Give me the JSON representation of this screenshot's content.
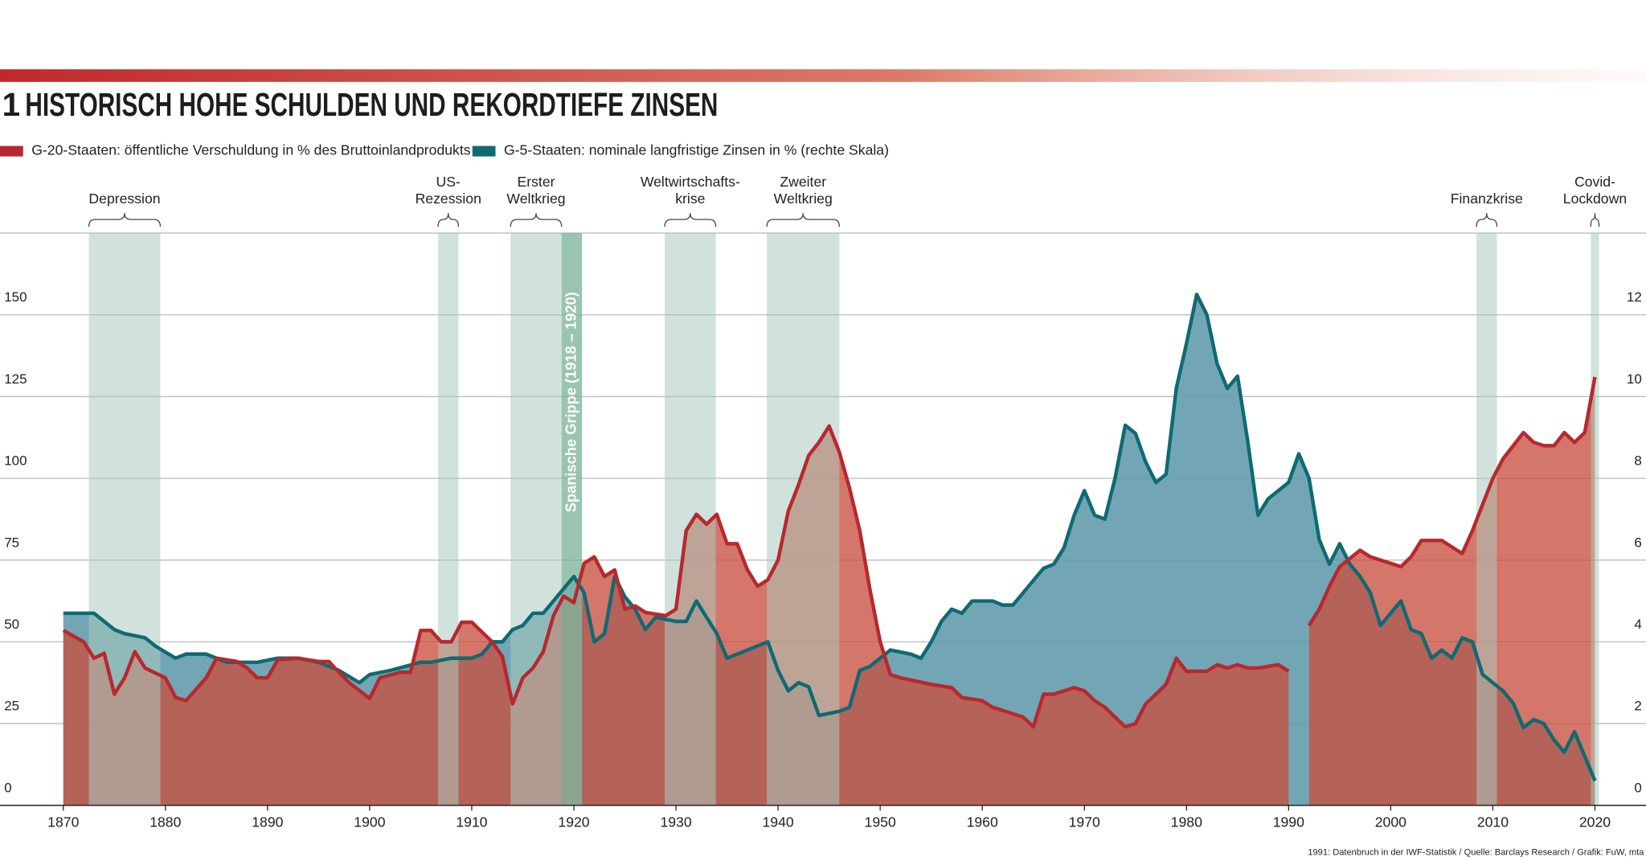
{
  "chart_data": {
    "type": "area",
    "number": "1",
    "title": "HISTORISCH HOHE SCHULDEN UND REKORDTIEFE ZINSEN",
    "source": "1991: Datenbruch in der IWF-Statistik / Quelle: Barclays Research / Grafik: FuW, mta",
    "xlim": [
      1863.8,
      2025
    ],
    "xticks": [
      1870,
      1880,
      1890,
      1900,
      1910,
      1920,
      1930,
      1940,
      1950,
      1960,
      1970,
      1980,
      1990,
      2000,
      2010,
      2020
    ],
    "ylim": [
      0,
      175
    ],
    "yticks": [
      0,
      25,
      50,
      75,
      100,
      125,
      150
    ],
    "y2lim": [
      0,
      14
    ],
    "y2ticks": [
      0,
      2,
      4,
      6,
      8,
      10,
      12
    ],
    "grid": true,
    "series": [
      {
        "name": "G-20-Staaten: öffentliche Verschuldung in % des Bruttoinlandprodukts",
        "color": "#b8282e",
        "fill": "#c8503f",
        "x": [
          1870,
          1872,
          1873,
          1874,
          1875,
          1876,
          1877,
          1878,
          1880,
          1881,
          1882,
          1884,
          1885,
          1887,
          1888,
          1889,
          1890,
          1891,
          1893,
          1895,
          1896,
          1897,
          1898,
          1900,
          1901,
          1903,
          1904,
          1905,
          1906,
          1907,
          1908,
          1909,
          1910,
          1912,
          1913,
          1914,
          1915,
          1916,
          1917,
          1918,
          1919,
          1920,
          1921,
          1922,
          1923,
          1924,
          1925,
          1926,
          1927,
          1929,
          1930,
          1931,
          1932,
          1933,
          1934,
          1935,
          1936,
          1937,
          1938,
          1939,
          1940,
          1941,
          1942,
          1943,
          1944,
          1945,
          1946,
          1947,
          1948,
          1949,
          1950,
          1951,
          1952,
          1955,
          1957,
          1958,
          1960,
          1961,
          1963,
          1964,
          1965,
          1966,
          1967,
          1969,
          1970,
          1971,
          1972,
          1973,
          1974,
          1975,
          1976,
          1977,
          1978,
          1979,
          1980,
          1982,
          1983,
          1984,
          1985,
          1986,
          1987,
          1989,
          1990,
          1991,
          1992,
          1993,
          1994,
          1995,
          1997,
          1998,
          2000,
          2001,
          2002,
          2003,
          2005,
          2006,
          2007,
          2008,
          2009,
          2010,
          2011,
          2013,
          2014,
          2015,
          2016,
          2017,
          2018,
          2019,
          2020
        ],
        "values": [
          53.5,
          50,
          45,
          46.5,
          34,
          39,
          47,
          42,
          39,
          33,
          32,
          39,
          45,
          44,
          42,
          39,
          39,
          44.5,
          45,
          44,
          44,
          40.7,
          37.5,
          32.7,
          39,
          40.7,
          40.7,
          53.5,
          53.5,
          50,
          50,
          56,
          56,
          50,
          45.5,
          31,
          39,
          42,
          47,
          58,
          64,
          62,
          74,
          76,
          70,
          72,
          60,
          61,
          59,
          58,
          60,
          84,
          89,
          86,
          89,
          80,
          80,
          72,
          67,
          69,
          75,
          90,
          98,
          107,
          111,
          116,
          108,
          97,
          84,
          66,
          50,
          40,
          39,
          37,
          36,
          33,
          32,
          30,
          28,
          27,
          24,
          34,
          34,
          36,
          35,
          32,
          30,
          27,
          24,
          25,
          31,
          34,
          37,
          45,
          41,
          41,
          43,
          42,
          43,
          42,
          42,
          43,
          41,
          null,
          55,
          60,
          67,
          73,
          78,
          76,
          74,
          73,
          76,
          81,
          81,
          79,
          77,
          84,
          92,
          100,
          106,
          114,
          111,
          110,
          110,
          114,
          111,
          114,
          131
        ]
      },
      {
        "name": "G-5-Staaten: nominale langfristige Zinsen in % (rechte Skala)",
        "color": "#0f6a72",
        "fill": "#5f9aab",
        "axis": "y2",
        "x": [
          1870,
          1872,
          1873,
          1875,
          1876,
          1878,
          1879,
          1881,
          1882,
          1884,
          1886,
          1889,
          1891,
          1893,
          1895,
          1897,
          1899,
          1900,
          1902,
          1905,
          1906,
          1908,
          1910,
          1911,
          1912,
          1913,
          1914,
          1915,
          1916,
          1917,
          1918,
          1919,
          1920,
          1921,
          1922,
          1923,
          1924,
          1925,
          1926,
          1927,
          1928,
          1930,
          1931,
          1932,
          1933,
          1934,
          1935,
          1937,
          1938,
          1939,
          1940,
          1941,
          1942,
          1943,
          1944,
          1946,
          1947,
          1948,
          1949,
          1950,
          1951,
          1953,
          1954,
          1955,
          1956,
          1957,
          1958,
          1959,
          1961,
          1962,
          1963,
          1964,
          1966,
          1967,
          1968,
          1969,
          1970,
          1971,
          1972,
          1973,
          1974,
          1975,
          1976,
          1977,
          1978,
          1979,
          1980,
          1981,
          1982,
          1983,
          1984,
          1985,
          1986,
          1987,
          1988,
          1989,
          1990,
          1991,
          1992,
          1993,
          1994,
          1995,
          1996,
          1997,
          1998,
          1999,
          2000,
          2001,
          2002,
          2003,
          2004,
          2005,
          2006,
          2007,
          2008,
          2009,
          2011,
          2012,
          2013,
          2014,
          2015,
          2016,
          2017,
          2018,
          2019,
          2020
        ],
        "values": [
          4.7,
          4.7,
          4.7,
          4.3,
          4.2,
          4.1,
          3.9,
          3.6,
          3.7,
          3.7,
          3.5,
          3.5,
          3.6,
          3.6,
          3.5,
          3.3,
          3.0,
          3.2,
          3.3,
          3.5,
          3.5,
          3.6,
          3.6,
          3.7,
          4.0,
          4.0,
          4.3,
          4.4,
          4.7,
          4.7,
          5.0,
          5.3,
          5.6,
          5.2,
          4.0,
          4.2,
          5.6,
          5.1,
          4.8,
          4.3,
          4.6,
          4.5,
          4.5,
          5.0,
          4.6,
          4.2,
          3.6,
          3.8,
          3.9,
          4.0,
          3.3,
          2.8,
          3.0,
          2.9,
          2.2,
          2.3,
          2.4,
          3.3,
          3.4,
          3.6,
          3.8,
          3.7,
          3.6,
          4.0,
          4.5,
          4.8,
          4.7,
          5.0,
          5.0,
          4.9,
          4.9,
          5.2,
          5.8,
          5.9,
          6.3,
          7.1,
          7.7,
          7.1,
          7.0,
          8.0,
          9.3,
          9.1,
          8.4,
          7.9,
          8.1,
          10.2,
          11.3,
          12.5,
          12.0,
          10.8,
          10.2,
          10.5,
          8.9,
          7.1,
          7.5,
          7.7,
          7.9,
          8.6,
          8.0,
          6.5,
          5.9,
          6.4,
          5.9,
          5.6,
          5.2,
          4.4,
          4.7,
          5.0,
          4.3,
          4.2,
          3.6,
          3.8,
          3.6,
          4.1,
          4.0,
          3.2,
          2.8,
          2.5,
          1.9,
          2.1,
          2.0,
          1.6,
          1.3,
          1.8,
          1.2,
          0.6
        ]
      }
    ],
    "events": [
      {
        "label": [
          "Depression"
        ],
        "start": 1872.5,
        "end": 1879.5
      },
      {
        "label": [
          "US-",
          "Rezession"
        ],
        "start": 1906.7,
        "end": 1908.7
      },
      {
        "label": [
          "Erster",
          "Weltkrieg"
        ],
        "start": 1913.8,
        "end": 1918.8
      },
      {
        "label": [
          "Weltwirtschafts-",
          "krise"
        ],
        "start": 1928.9,
        "end": 1933.9
      },
      {
        "label": [
          "Zweiter",
          "Weltkrieg"
        ],
        "start": 1938.9,
        "end": 1946
      },
      {
        "label": [
          "Finanzkrise"
        ],
        "start": 2008.4,
        "end": 2010.4
      },
      {
        "label": [
          "Covid-",
          "Lockdown"
        ],
        "start": 2019.6,
        "end": 2020.4
      }
    ],
    "flu": {
      "label": "Spanische Grippe (1918 – 1920)",
      "start": 1918.8,
      "end": 1920.8
    }
  }
}
